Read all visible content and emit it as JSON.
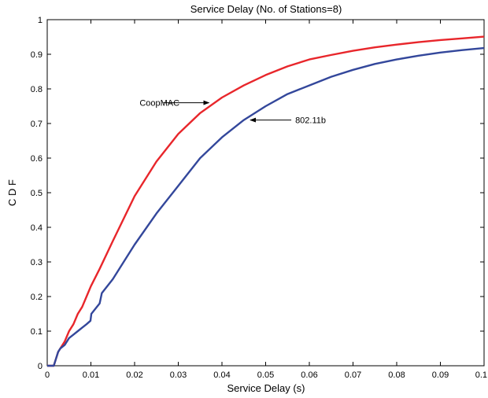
{
  "chart_data": {
    "type": "line",
    "title": "Service Delay (No. of Stations=8)",
    "xlabel": "Service Delay (s)",
    "ylabel": "C D F",
    "xlim": [
      0,
      0.1
    ],
    "ylim": [
      0,
      1
    ],
    "xticks": [
      0,
      0.01,
      0.02,
      0.03,
      0.04,
      0.05,
      0.06,
      0.07,
      0.08,
      0.09,
      0.1
    ],
    "xtick_labels": [
      "0",
      "0.01",
      "0.02",
      "0.03",
      "0.04",
      "0.05",
      "0.06",
      "0.07",
      "0.08",
      "0.09",
      "0.1"
    ],
    "yticks": [
      0,
      0.1,
      0.2,
      0.3,
      0.4,
      0.5,
      0.6,
      0.7,
      0.8,
      0.9,
      1
    ],
    "ytick_labels": [
      "0",
      "0.1",
      "0.2",
      "0.3",
      "0.4",
      "0.5",
      "0.6",
      "0.7",
      "0.8",
      "0.9",
      "1"
    ],
    "grid": false,
    "series": [
      {
        "name": "CoopMAC",
        "color": "#e8262b",
        "x": [
          0,
          0.0015,
          0.002,
          0.0025,
          0.003,
          0.004,
          0.005,
          0.006,
          0.007,
          0.008,
          0.009,
          0.01,
          0.012,
          0.015,
          0.02,
          0.025,
          0.03,
          0.035,
          0.04,
          0.045,
          0.05,
          0.055,
          0.06,
          0.065,
          0.07,
          0.075,
          0.08,
          0.085,
          0.09,
          0.095,
          0.1
        ],
        "y": [
          0,
          0,
          0.02,
          0.04,
          0.05,
          0.07,
          0.1,
          0.12,
          0.15,
          0.17,
          0.2,
          0.23,
          0.28,
          0.36,
          0.49,
          0.59,
          0.67,
          0.73,
          0.775,
          0.81,
          0.84,
          0.865,
          0.885,
          0.898,
          0.91,
          0.92,
          0.928,
          0.935,
          0.941,
          0.946,
          0.951
        ]
      },
      {
        "name": "802.11b",
        "color": "#33479b",
        "x": [
          0,
          0.0015,
          0.002,
          0.0025,
          0.003,
          0.004,
          0.005,
          0.006,
          0.007,
          0.008,
          0.009,
          0.0099,
          0.0101,
          0.012,
          0.0125,
          0.015,
          0.02,
          0.025,
          0.03,
          0.035,
          0.04,
          0.045,
          0.05,
          0.055,
          0.06,
          0.065,
          0.07,
          0.075,
          0.08,
          0.085,
          0.09,
          0.095,
          0.1
        ],
        "y": [
          0,
          0,
          0.02,
          0.04,
          0.05,
          0.06,
          0.08,
          0.09,
          0.1,
          0.11,
          0.12,
          0.13,
          0.15,
          0.18,
          0.21,
          0.25,
          0.35,
          0.44,
          0.52,
          0.6,
          0.66,
          0.71,
          0.75,
          0.785,
          0.81,
          0.835,
          0.855,
          0.872,
          0.885,
          0.896,
          0.905,
          0.912,
          0.918
        ]
      }
    ],
    "annotations": [
      {
        "text": "CoopMAC",
        "series": 0,
        "point": [
          0.037,
          0.76
        ]
      },
      {
        "text": "802.11b",
        "series": 1,
        "point": [
          0.0465,
          0.71
        ]
      }
    ]
  }
}
